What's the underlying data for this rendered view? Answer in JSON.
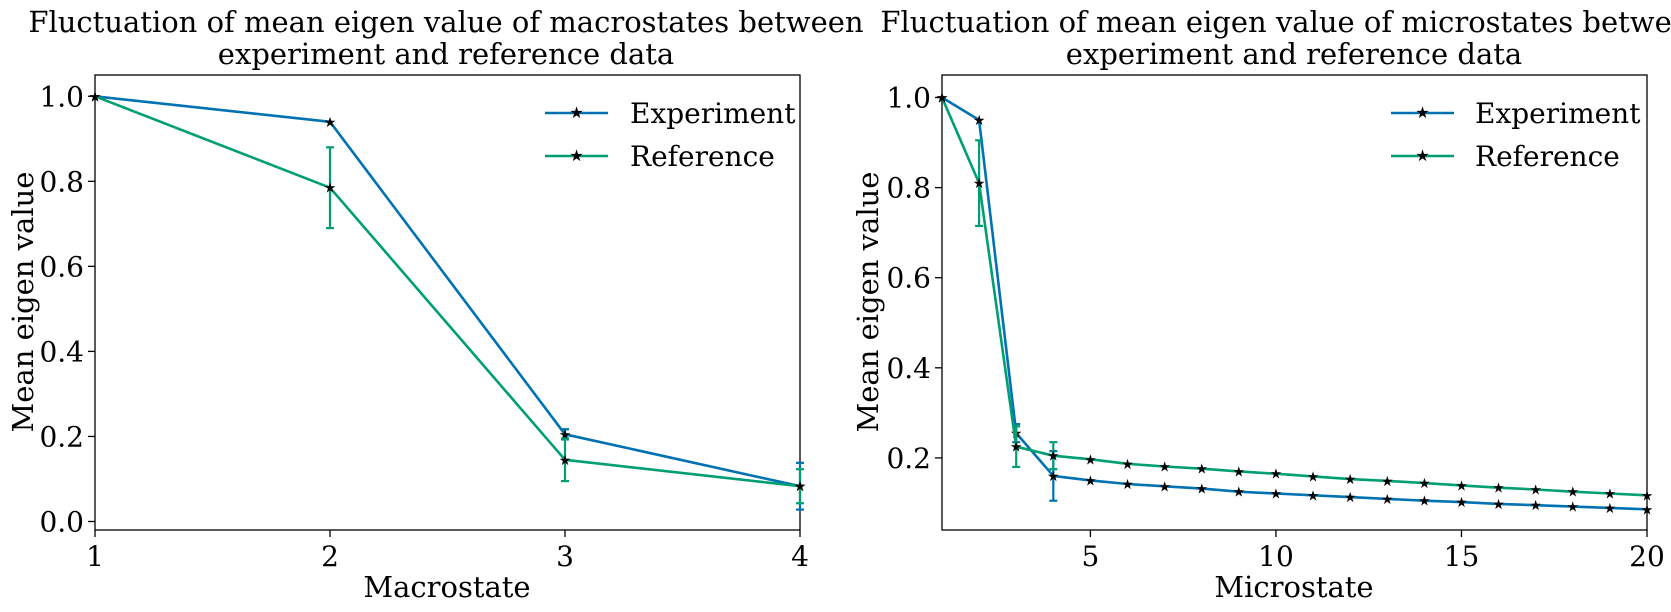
{
  "chart_data": [
    {
      "type": "line",
      "title": "Fluctuation of mean eigen value of macrostates between experiment and reference data",
      "title_lines": [
        "Fluctuation of mean eigen value of macrostates between",
        "experiment and reference data"
      ],
      "xlabel": "Macrostate",
      "ylabel": "Mean eigen value",
      "xlim": [
        1,
        4
      ],
      "ylim": [
        -0.02,
        1.05
      ],
      "xticks": [
        1,
        2,
        3,
        4
      ],
      "yticks": [
        0.0,
        0.2,
        0.4,
        0.6,
        0.8,
        1.0
      ],
      "xtick_labels": [
        "1",
        "2",
        "3",
        "4"
      ],
      "ytick_labels": [
        "0.0",
        "0.2",
        "0.4",
        "0.6",
        "0.8",
        "1.0"
      ],
      "legend_position": "top-right",
      "grid": false,
      "x": [
        1,
        2,
        3,
        4
      ],
      "series": [
        {
          "name": "Experiment",
          "color": "#0072b2",
          "y": [
            1.0,
            0.94,
            0.205,
            0.083
          ],
          "err": [
            0,
            0,
            0.012,
            0.055
          ]
        },
        {
          "name": "Reference",
          "color": "#009e73",
          "y": [
            1.0,
            0.785,
            0.145,
            0.083
          ],
          "err": [
            0,
            0.095,
            0.05,
            0.04
          ]
        }
      ]
    },
    {
      "type": "line",
      "title": "Fluctuation of mean eigen value of microstates between experiment and reference data",
      "title_lines": [
        "Fluctuation of mean eigen value of microstates between",
        "experiment and reference data"
      ],
      "xlabel": "Microstate",
      "ylabel": "Mean eigen value",
      "xlim": [
        1,
        20
      ],
      "ylim": [
        0.04,
        1.05
      ],
      "xticks": [
        5,
        10,
        15,
        20
      ],
      "yticks": [
        0.2,
        0.4,
        0.6,
        0.8,
        1.0
      ],
      "xtick_labels": [
        "5",
        "10",
        "15",
        "20"
      ],
      "ytick_labels": [
        "0.2",
        "0.4",
        "0.6",
        "0.8",
        "1.0"
      ],
      "legend_position": "top-right",
      "grid": false,
      "x": [
        1,
        2,
        3,
        4,
        5,
        6,
        7,
        8,
        9,
        10,
        11,
        12,
        13,
        14,
        15,
        16,
        17,
        18,
        19,
        20
      ],
      "series": [
        {
          "name": "Experiment",
          "color": "#0072b2",
          "y": [
            1.0,
            0.95,
            0.255,
            0.16,
            0.15,
            0.142,
            0.137,
            0.132,
            0.125,
            0.121,
            0.117,
            0.113,
            0.109,
            0.105,
            0.102,
            0.098,
            0.095,
            0.092,
            0.089,
            0.086
          ],
          "err": [
            0,
            0,
            0.02,
            0.055,
            0,
            0,
            0,
            0,
            0,
            0,
            0,
            0,
            0,
            0,
            0,
            0,
            0,
            0,
            0,
            0
          ]
        },
        {
          "name": "Reference",
          "color": "#009e73",
          "y": [
            1.0,
            0.81,
            0.225,
            0.205,
            0.197,
            0.187,
            0.181,
            0.176,
            0.17,
            0.165,
            0.159,
            0.153,
            0.149,
            0.144,
            0.139,
            0.134,
            0.13,
            0.125,
            0.121,
            0.117
          ],
          "err": [
            0,
            0.095,
            0.045,
            0.03,
            0,
            0,
            0,
            0,
            0,
            0,
            0,
            0,
            0,
            0,
            0,
            0,
            0,
            0,
            0,
            0
          ]
        }
      ]
    }
  ]
}
